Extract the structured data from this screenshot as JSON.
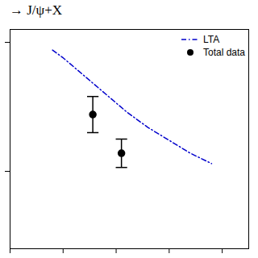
{
  "chart_data": {
    "type": "line",
    "title": "→ J/ψ+X",
    "series": [
      {
        "name": "LTA",
        "type": "line",
        "line_style": "dashdot",
        "color": "#0000cc",
        "x": [
          -0.1,
          0.0,
          0.2,
          0.4,
          0.6,
          0.8,
          1.0,
          1.2,
          1.4
        ],
        "values": [
          0.97,
          0.94,
          0.87,
          0.8,
          0.73,
          0.67,
          0.62,
          0.57,
          0.53
        ]
      },
      {
        "name": "Total data",
        "type": "scatter",
        "marker": "circle",
        "color": "#000000",
        "x": [
          0.28,
          0.55
        ],
        "values": [
          0.72,
          0.57
        ],
        "errors": [
          0.07,
          0.055
        ]
      }
    ],
    "xlim": [
      -0.5,
      1.75
    ],
    "ylim": [
      0.2,
      1.05
    ],
    "xticks": [
      -0.5,
      0,
      0.5,
      1,
      1.5
    ],
    "yticks": [
      0.5,
      1
    ],
    "tick_labels": false,
    "legend": "upper right"
  }
}
